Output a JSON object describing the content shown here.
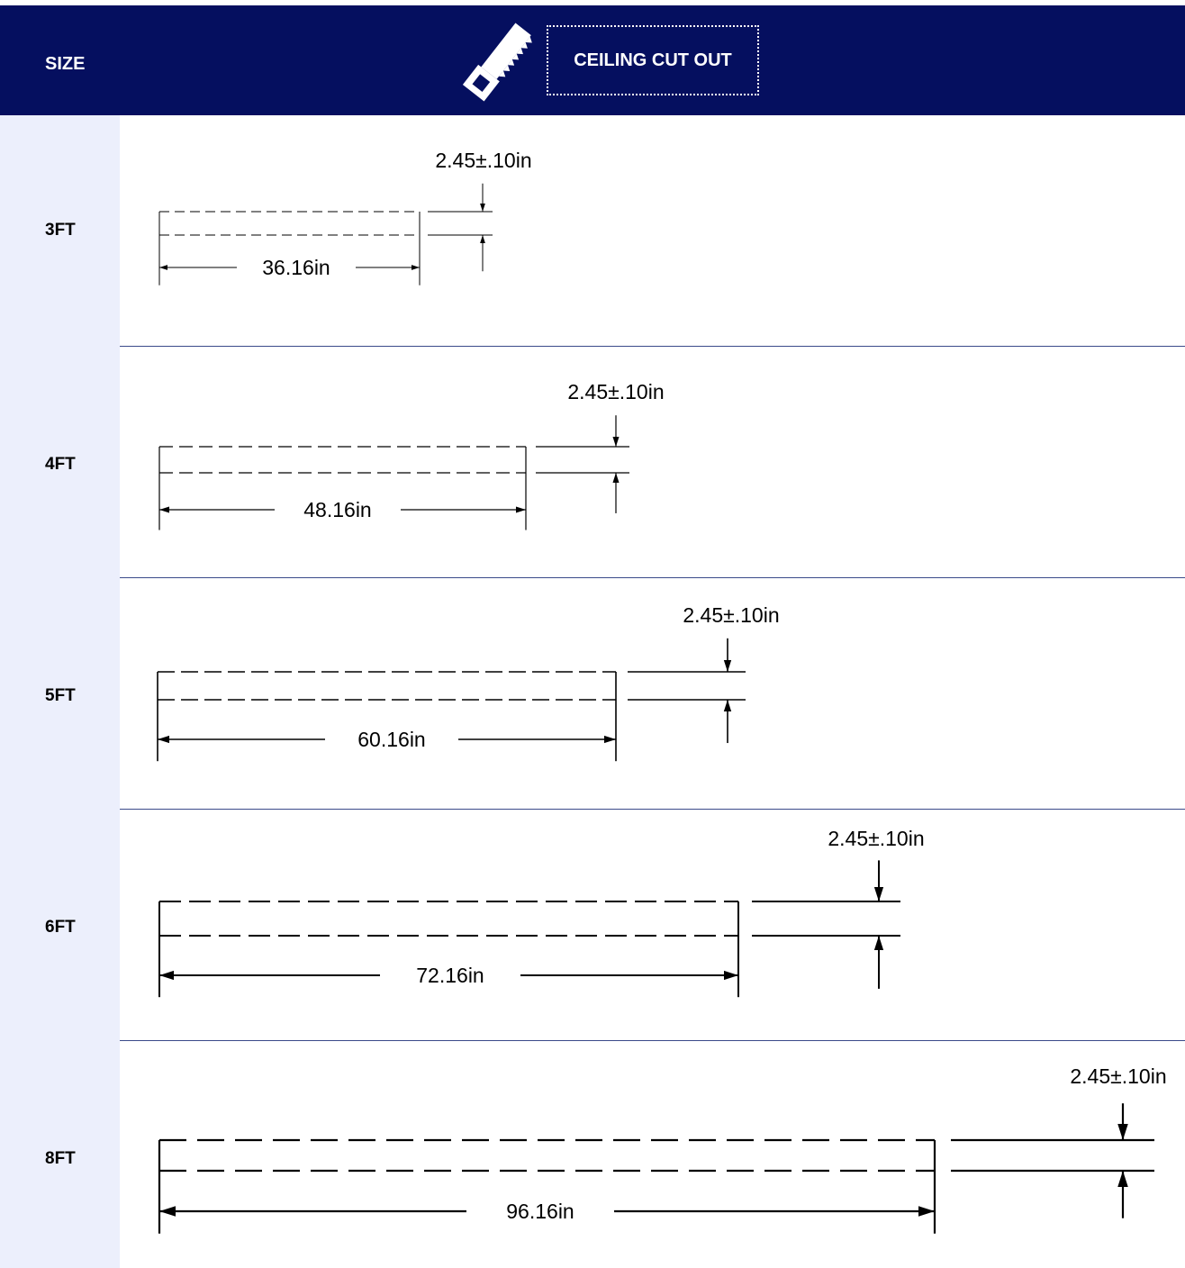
{
  "header": {
    "size_label": "SIZE",
    "cut_out_label": "CEILING CUT OUT",
    "icon": "saw-icon",
    "background": "#050f5f"
  },
  "rows": [
    {
      "label": "3FT",
      "length": "36.16in",
      "width": "2.45±.10in"
    },
    {
      "label": "4FT",
      "length": "48.16in",
      "width": "2.45±.10in"
    },
    {
      "label": "5FT",
      "length": "60.16in",
      "width": "2.45±.10in"
    },
    {
      "label": "6FT",
      "length": "72.16in",
      "width": "2.45±.10in"
    },
    {
      "label": "8FT",
      "length": "96.16in",
      "width": "2.45±.10in"
    }
  ]
}
